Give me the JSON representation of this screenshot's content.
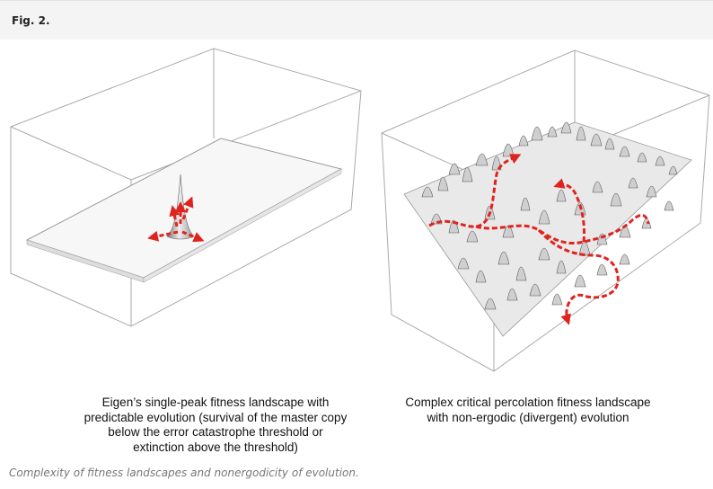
{
  "figure_label": "Fig. 2.",
  "panels": [
    {
      "caption_lines": [
        "Eigen’s single-peak fitness landscape with",
        "predictable evolution (survival of the master copy",
        "below the error catastrophe threshold  or",
        "extinction above the threshold)"
      ]
    },
    {
      "caption_lines": [
        "Complex critical percolation fitness landscape",
        "with non-ergodic (divergent) evolution"
      ]
    }
  ],
  "figure_caption": "Complexity of fitness landscapes and nonergodicity of evolution.",
  "colors": {
    "path": "#e0231f",
    "box": "#aaaaaa",
    "surface": "#c8c8c8"
  }
}
